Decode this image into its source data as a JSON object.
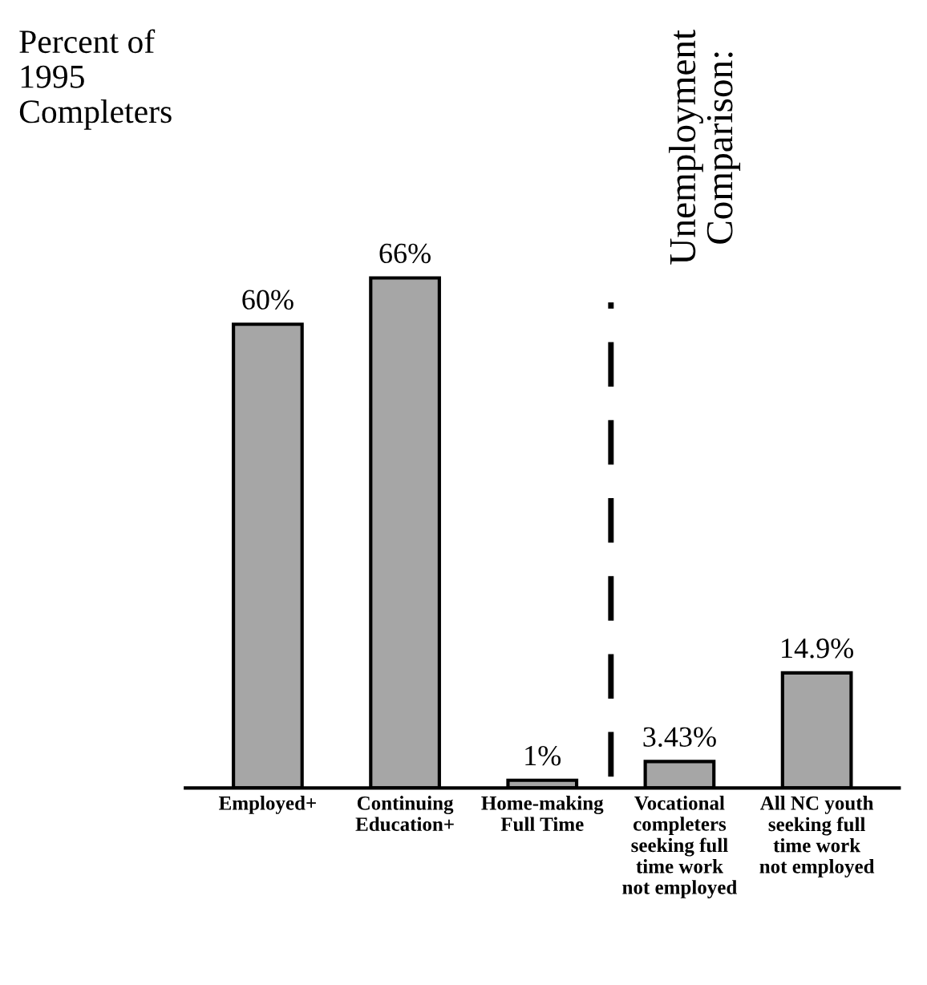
{
  "chart_data": {
    "type": "bar",
    "ylabel": "Percent of\n1995\nCompleters",
    "categories": [
      "Employed+",
      "Continuing\nEducation+",
      "Home-making\nFull Time",
      "Vocational\ncompleters\nseeking full\ntime work\nnot employed",
      "All NC youth\nseeking full\ntime work\nnot employed"
    ],
    "values": [
      60,
      66,
      1,
      3.43,
      14.9
    ],
    "value_labels": [
      "60%",
      "66%",
      "1%",
      "3.43%",
      "14.9%"
    ],
    "color": "#a6a6a6",
    "annotations": [
      "Unemployment\nComparison:"
    ],
    "grid": false,
    "legend": false
  }
}
